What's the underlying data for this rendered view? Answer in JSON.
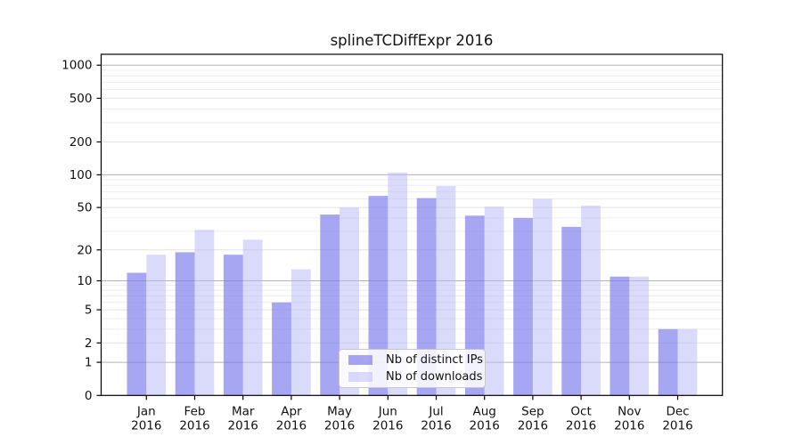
{
  "chart_data": {
    "type": "bar",
    "title": "splineTCDiffExpr 2016",
    "categories": [
      "Jan",
      "Feb",
      "Mar",
      "Apr",
      "May",
      "Jun",
      "Jul",
      "Aug",
      "Sep",
      "Oct",
      "Nov",
      "Dec"
    ],
    "year_label": "2016",
    "series": [
      {
        "name": "Nb of distinct IPs",
        "fill": "rgba(120,120,235,0.66)",
        "values": [
          12,
          19,
          18,
          6,
          43,
          64,
          61,
          42,
          40,
          33,
          11,
          3
        ]
      },
      {
        "name": "Nb of downloads",
        "fill": "rgba(185,185,245,0.52)",
        "values": [
          18,
          31,
          25,
          13,
          50,
          105,
          79,
          51,
          60,
          52,
          11,
          3
        ]
      }
    ],
    "xlabel": "",
    "ylabel": "",
    "y_scale": "log10(1+x)",
    "ylim": [
      0,
      1265
    ],
    "y_ticks": [
      0,
      1,
      2,
      5,
      10,
      20,
      50,
      100,
      200,
      500,
      1000
    ],
    "y_major_gridlines": [
      1,
      10,
      100,
      1000
    ],
    "y_secondary_gridlines": [
      2,
      5,
      20,
      50,
      200,
      500
    ],
    "y_minor_gridlines": [
      3,
      4,
      6,
      7,
      8,
      9,
      30,
      40,
      60,
      70,
      80,
      90,
      300,
      400,
      600,
      700,
      800,
      900
    ],
    "grid": true,
    "legend_position": "lower-center",
    "colors": {
      "major_grid": "#b3b3b3",
      "secondary_grid": "#e3e3e3",
      "minor_grid": "#ededed",
      "axis": "#000000",
      "text": "#111111"
    }
  }
}
